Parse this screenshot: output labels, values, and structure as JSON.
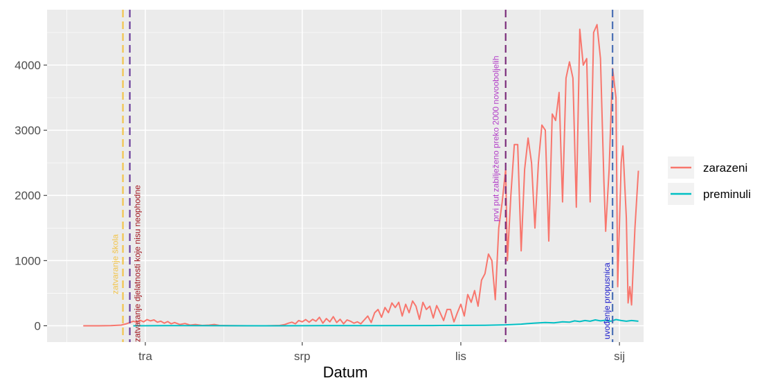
{
  "chart_data": {
    "type": "line",
    "xlabel": "Datum",
    "ylabel": "",
    "x_ticks": [
      {
        "date": "2020-04-01",
        "label": "tra"
      },
      {
        "date": "2020-07-01",
        "label": "srp"
      },
      {
        "date": "2020-10-01",
        "label": "lis"
      },
      {
        "date": "2021-01-01",
        "label": "sij"
      }
    ],
    "xlim": [
      "2020-02-04",
      "2021-01-15"
    ],
    "y_ticks": [
      0,
      1000,
      2000,
      3000,
      4000
    ],
    "ylim": [
      -250,
      4850
    ],
    "grid": true,
    "legend": {
      "placement": "right"
    },
    "series": [
      {
        "name": "zarazeni",
        "color": "#F8766D",
        "points": [
          [
            "2020-02-25",
            0
          ],
          [
            "2020-03-05",
            0
          ],
          [
            "2020-03-12",
            2
          ],
          [
            "2020-03-18",
            10
          ],
          [
            "2020-03-21",
            30
          ],
          [
            "2020-03-23",
            50
          ],
          [
            "2020-03-25",
            70
          ],
          [
            "2020-03-27",
            55
          ],
          [
            "2020-03-29",
            85
          ],
          [
            "2020-03-31",
            60
          ],
          [
            "2020-04-02",
            95
          ],
          [
            "2020-04-04",
            75
          ],
          [
            "2020-04-06",
            90
          ],
          [
            "2020-04-08",
            55
          ],
          [
            "2020-04-10",
            70
          ],
          [
            "2020-04-12",
            40
          ],
          [
            "2020-04-14",
            65
          ],
          [
            "2020-04-16",
            30
          ],
          [
            "2020-04-18",
            50
          ],
          [
            "2020-04-21",
            20
          ],
          [
            "2020-04-24",
            35
          ],
          [
            "2020-04-27",
            10
          ],
          [
            "2020-04-30",
            20
          ],
          [
            "2020-05-04",
            5
          ],
          [
            "2020-05-08",
            10
          ],
          [
            "2020-05-11",
            20
          ],
          [
            "2020-05-14",
            5
          ],
          [
            "2020-05-20",
            2
          ],
          [
            "2020-05-30",
            0
          ],
          [
            "2020-06-10",
            0
          ],
          [
            "2020-06-18",
            5
          ],
          [
            "2020-06-21",
            20
          ],
          [
            "2020-06-23",
            40
          ],
          [
            "2020-06-25",
            55
          ],
          [
            "2020-06-27",
            30
          ],
          [
            "2020-06-29",
            80
          ],
          [
            "2020-07-01",
            60
          ],
          [
            "2020-07-03",
            95
          ],
          [
            "2020-07-05",
            55
          ],
          [
            "2020-07-07",
            100
          ],
          [
            "2020-07-09",
            70
          ],
          [
            "2020-07-11",
            130
          ],
          [
            "2020-07-13",
            40
          ],
          [
            "2020-07-15",
            110
          ],
          [
            "2020-07-17",
            60
          ],
          [
            "2020-07-19",
            140
          ],
          [
            "2020-07-21",
            50
          ],
          [
            "2020-07-23",
            100
          ],
          [
            "2020-07-25",
            30
          ],
          [
            "2020-07-27",
            90
          ],
          [
            "2020-07-29",
            70
          ],
          [
            "2020-07-31",
            40
          ],
          [
            "2020-08-02",
            60
          ],
          [
            "2020-08-04",
            30
          ],
          [
            "2020-08-06",
            90
          ],
          [
            "2020-08-08",
            150
          ],
          [
            "2020-08-10",
            50
          ],
          [
            "2020-08-12",
            200
          ],
          [
            "2020-08-14",
            250
          ],
          [
            "2020-08-16",
            130
          ],
          [
            "2020-08-18",
            280
          ],
          [
            "2020-08-20",
            200
          ],
          [
            "2020-08-22",
            350
          ],
          [
            "2020-08-24",
            280
          ],
          [
            "2020-08-26",
            360
          ],
          [
            "2020-08-28",
            150
          ],
          [
            "2020-08-30",
            330
          ],
          [
            "2020-09-01",
            200
          ],
          [
            "2020-09-03",
            380
          ],
          [
            "2020-09-05",
            300
          ],
          [
            "2020-09-07",
            100
          ],
          [
            "2020-09-09",
            360
          ],
          [
            "2020-09-11",
            250
          ],
          [
            "2020-09-13",
            300
          ],
          [
            "2020-09-15",
            120
          ],
          [
            "2020-09-17",
            310
          ],
          [
            "2020-09-19",
            200
          ],
          [
            "2020-09-21",
            80
          ],
          [
            "2020-09-23",
            250
          ],
          [
            "2020-09-25",
            250
          ],
          [
            "2020-09-27",
            60
          ],
          [
            "2020-09-29",
            200
          ],
          [
            "2020-10-01",
            330
          ],
          [
            "2020-10-03",
            150
          ],
          [
            "2020-10-05",
            480
          ],
          [
            "2020-10-07",
            360
          ],
          [
            "2020-10-09",
            540
          ],
          [
            "2020-10-11",
            300
          ],
          [
            "2020-10-13",
            700
          ],
          [
            "2020-10-15",
            800
          ],
          [
            "2020-10-17",
            1100
          ],
          [
            "2020-10-19",
            1000
          ],
          [
            "2020-10-21",
            400
          ],
          [
            "2020-10-23",
            1500
          ],
          [
            "2020-10-25",
            1900
          ],
          [
            "2020-10-27",
            2400
          ],
          [
            "2020-10-28",
            1000
          ],
          [
            "2020-10-30",
            2000
          ],
          [
            "2020-11-01",
            2780
          ],
          [
            "2020-11-03",
            2780
          ],
          [
            "2020-11-05",
            1150
          ],
          [
            "2020-11-07",
            2400
          ],
          [
            "2020-11-09",
            2880
          ],
          [
            "2020-11-11",
            2500
          ],
          [
            "2020-11-13",
            1500
          ],
          [
            "2020-11-15",
            2500
          ],
          [
            "2020-11-17",
            3080
          ],
          [
            "2020-11-19",
            3000
          ],
          [
            "2020-11-21",
            1300
          ],
          [
            "2020-11-23",
            3250
          ],
          [
            "2020-11-25",
            3150
          ],
          [
            "2020-11-27",
            3580
          ],
          [
            "2020-11-29",
            1900
          ],
          [
            "2020-12-01",
            3800
          ],
          [
            "2020-12-03",
            4050
          ],
          [
            "2020-12-05",
            3800
          ],
          [
            "2020-12-07",
            1820
          ],
          [
            "2020-12-09",
            4550
          ],
          [
            "2020-12-11",
            4000
          ],
          [
            "2020-12-13",
            4100
          ],
          [
            "2020-12-15",
            1900
          ],
          [
            "2020-12-17",
            4500
          ],
          [
            "2020-12-19",
            4620
          ],
          [
            "2020-12-21",
            4100
          ],
          [
            "2020-12-23",
            2200
          ],
          [
            "2020-12-24",
            1450
          ],
          [
            "2020-12-26",
            2400
          ],
          [
            "2020-12-28",
            3950
          ],
          [
            "2020-12-30",
            3500
          ],
          [
            "2020-12-31",
            600
          ],
          [
            "2021-01-01",
            1550
          ],
          [
            "2021-01-02",
            2500
          ],
          [
            "2021-01-03",
            2760
          ],
          [
            "2021-01-04",
            2200
          ],
          [
            "2021-01-05",
            1650
          ],
          [
            "2021-01-06",
            350
          ],
          [
            "2021-01-07",
            600
          ],
          [
            "2021-01-08",
            320
          ],
          [
            "2021-01-10",
            1500
          ],
          [
            "2021-01-12",
            2380
          ]
        ]
      },
      {
        "name": "preminuli",
        "color": "#00BFC4",
        "points": [
          [
            "2020-03-25",
            0
          ],
          [
            "2020-04-15",
            3
          ],
          [
            "2020-05-15",
            1
          ],
          [
            "2020-06-15",
            0
          ],
          [
            "2020-07-15",
            2
          ],
          [
            "2020-08-15",
            3
          ],
          [
            "2020-09-15",
            4
          ],
          [
            "2020-10-15",
            8
          ],
          [
            "2020-10-27",
            15
          ],
          [
            "2020-11-05",
            25
          ],
          [
            "2020-11-12",
            40
          ],
          [
            "2020-11-19",
            50
          ],
          [
            "2020-11-24",
            45
          ],
          [
            "2020-11-29",
            60
          ],
          [
            "2020-12-03",
            55
          ],
          [
            "2020-12-06",
            75
          ],
          [
            "2020-12-09",
            65
          ],
          [
            "2020-12-12",
            80
          ],
          [
            "2020-12-15",
            70
          ],
          [
            "2020-12-18",
            90
          ],
          [
            "2020-12-21",
            75
          ],
          [
            "2020-12-24",
            85
          ],
          [
            "2020-12-27",
            70
          ],
          [
            "2020-12-30",
            95
          ],
          [
            "2021-01-02",
            80
          ],
          [
            "2021-01-05",
            70
          ],
          [
            "2021-01-08",
            80
          ],
          [
            "2021-01-12",
            70
          ]
        ]
      }
    ],
    "annotations": [
      {
        "date": "2020-03-19",
        "color": "#F2C44B",
        "text_color": "#F2C44B",
        "label": "zatvaranje škola"
      },
      {
        "date": "2020-03-23",
        "color": "#6A3D9A",
        "text_color": "#A0151E",
        "label": "zatvaranje djelatnosti koje nisu neophodne"
      },
      {
        "date": "2020-10-27",
        "color": "#7B2D7B",
        "text_color": "#B340C8",
        "label": "prvi put zabilježeno preko 2000 novooboljelih"
      },
      {
        "date": "2020-12-28",
        "color": "#4A6FB5",
        "text_color": "#1A1ACC",
        "label": "uvođenje propusnica"
      }
    ]
  }
}
